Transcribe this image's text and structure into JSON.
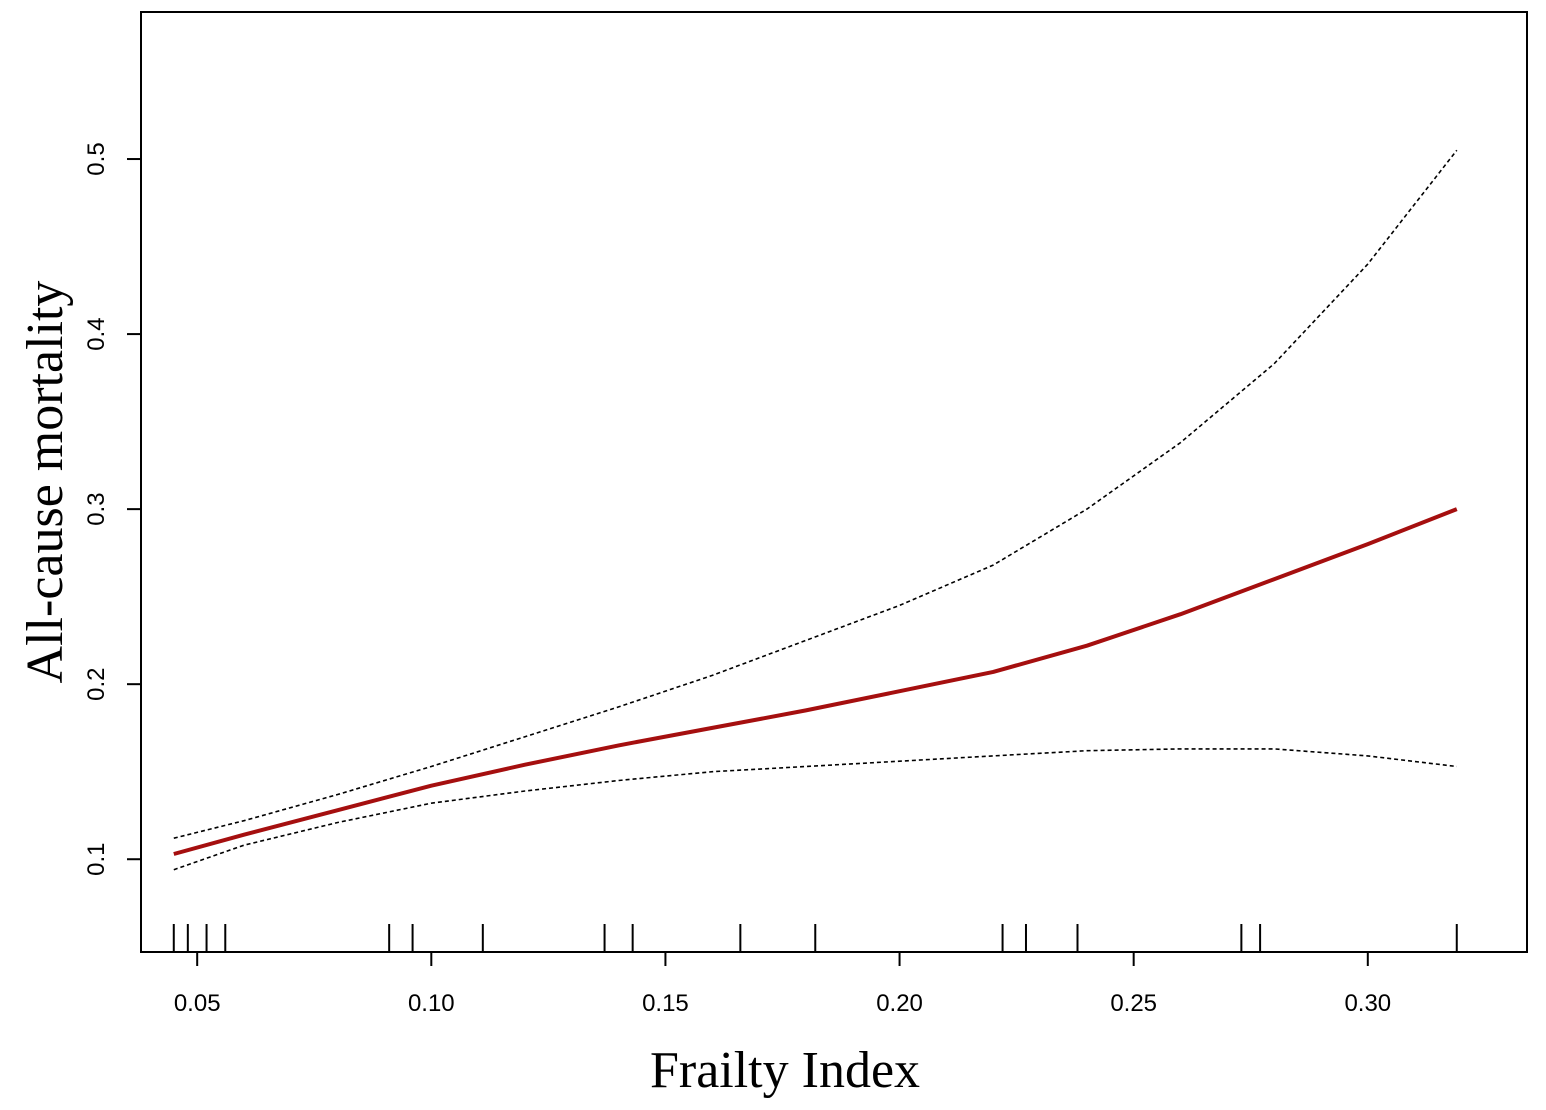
{
  "chart_data": {
    "type": "line",
    "title": "",
    "xlabel": "Frailty Index",
    "ylabel": "All-cause mortality",
    "xlim": [
      0.038,
      0.334
    ],
    "ylim": [
      0.047,
      0.584
    ],
    "x_ticks": [
      0.05,
      0.1,
      0.15,
      0.2,
      0.25,
      0.3
    ],
    "x_tick_labels": [
      "0.05",
      "0.10",
      "0.15",
      "0.20",
      "0.25",
      "0.30"
    ],
    "y_ticks": [
      0.1,
      0.2,
      0.3,
      0.4,
      0.5
    ],
    "y_tick_labels": [
      "0.1",
      "0.2",
      "0.3",
      "0.4",
      "0.5"
    ],
    "grid": false,
    "legend": "none",
    "series": [
      {
        "role": "estimate",
        "style": "solid",
        "color": "#a50f0f",
        "x": [
          0.045,
          0.06,
          0.08,
          0.1,
          0.12,
          0.14,
          0.16,
          0.18,
          0.2,
          0.22,
          0.24,
          0.26,
          0.28,
          0.3,
          0.319
        ],
        "y": [
          0.103,
          0.114,
          0.128,
          0.142,
          0.154,
          0.165,
          0.175,
          0.185,
          0.196,
          0.207,
          0.222,
          0.24,
          0.26,
          0.28,
          0.3
        ]
      },
      {
        "role": "upper-ci",
        "style": "dashed",
        "color": "#000000",
        "x": [
          0.045,
          0.06,
          0.08,
          0.1,
          0.12,
          0.14,
          0.16,
          0.18,
          0.2,
          0.22,
          0.24,
          0.26,
          0.28,
          0.3,
          0.319
        ],
        "y": [
          0.112,
          0.122,
          0.137,
          0.153,
          0.17,
          0.187,
          0.205,
          0.225,
          0.245,
          0.268,
          0.3,
          0.338,
          0.383,
          0.44,
          0.505
        ]
      },
      {
        "role": "lower-ci",
        "style": "dashed",
        "color": "#000000",
        "x": [
          0.045,
          0.06,
          0.08,
          0.1,
          0.12,
          0.14,
          0.16,
          0.18,
          0.2,
          0.22,
          0.24,
          0.26,
          0.28,
          0.3,
          0.319
        ],
        "y": [
          0.094,
          0.108,
          0.121,
          0.132,
          0.139,
          0.145,
          0.15,
          0.153,
          0.156,
          0.159,
          0.162,
          0.163,
          0.163,
          0.159,
          0.153
        ]
      }
    ],
    "rug": [
      0.045,
      0.048,
      0.052,
      0.056,
      0.091,
      0.096,
      0.111,
      0.137,
      0.143,
      0.166,
      0.182,
      0.222,
      0.227,
      0.238,
      0.273,
      0.277,
      0.319
    ]
  }
}
